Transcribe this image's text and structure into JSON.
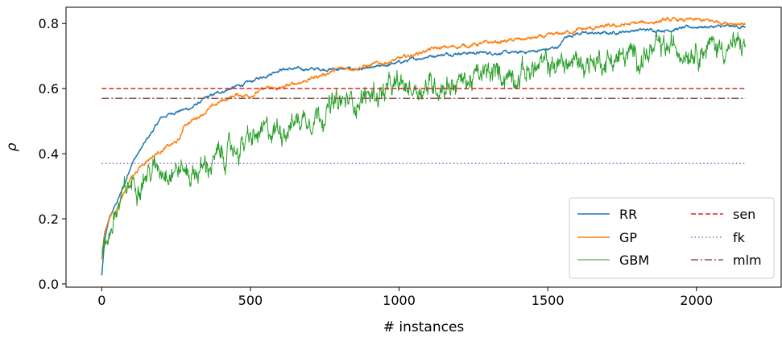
{
  "chart_data": {
    "type": "line",
    "xlabel": "# instances",
    "ylabel": "ρ",
    "xlim": [
      -120,
      2285
    ],
    "ylim": [
      -0.01,
      0.85
    ],
    "xticks": [
      0,
      500,
      1000,
      1500,
      2000
    ],
    "yticks": [
      0.0,
      0.2,
      0.4,
      0.6,
      0.8
    ],
    "xtick_labels": [
      "0",
      "500",
      "1000",
      "1500",
      "2000"
    ],
    "ytick_labels": [
      "0.0",
      "0.2",
      "0.4",
      "0.6",
      "0.8"
    ],
    "grid": false,
    "legend_position": "lower-right",
    "series": [
      {
        "name": "RR",
        "color": "#1f77b4",
        "style": "solid",
        "noise": 0.004,
        "points": [
          [
            0,
            0.025
          ],
          [
            10,
            0.13
          ],
          [
            25,
            0.2
          ],
          [
            50,
            0.25
          ],
          [
            75,
            0.3
          ],
          [
            100,
            0.37
          ],
          [
            150,
            0.44
          ],
          [
            200,
            0.51
          ],
          [
            250,
            0.53
          ],
          [
            300,
            0.54
          ],
          [
            350,
            0.57
          ],
          [
            400,
            0.59
          ],
          [
            500,
            0.62
          ],
          [
            600,
            0.66
          ],
          [
            700,
            0.66
          ],
          [
            800,
            0.66
          ],
          [
            900,
            0.66
          ],
          [
            1000,
            0.68
          ],
          [
            1100,
            0.7
          ],
          [
            1200,
            0.71
          ],
          [
            1300,
            0.71
          ],
          [
            1400,
            0.71
          ],
          [
            1500,
            0.72
          ],
          [
            1540,
            0.73
          ],
          [
            1560,
            0.76
          ],
          [
            1600,
            0.77
          ],
          [
            1700,
            0.77
          ],
          [
            1800,
            0.78
          ],
          [
            1900,
            0.78
          ],
          [
            2000,
            0.79
          ],
          [
            2165,
            0.79
          ]
        ]
      },
      {
        "name": "GP",
        "color": "#ff7f0e",
        "style": "solid",
        "noise": 0.005,
        "points": [
          [
            0,
            0.075
          ],
          [
            10,
            0.15
          ],
          [
            25,
            0.2
          ],
          [
            50,
            0.23
          ],
          [
            75,
            0.28
          ],
          [
            100,
            0.33
          ],
          [
            150,
            0.38
          ],
          [
            200,
            0.41
          ],
          [
            260,
            0.44
          ],
          [
            280,
            0.49
          ],
          [
            300,
            0.5
          ],
          [
            350,
            0.53
          ],
          [
            400,
            0.56
          ],
          [
            450,
            0.58
          ],
          [
            500,
            0.58
          ],
          [
            550,
            0.6
          ],
          [
            600,
            0.6
          ],
          [
            700,
            0.63
          ],
          [
            800,
            0.66
          ],
          [
            900,
            0.67
          ],
          [
            1000,
            0.69
          ],
          [
            1100,
            0.72
          ],
          [
            1200,
            0.73
          ],
          [
            1300,
            0.74
          ],
          [
            1400,
            0.75
          ],
          [
            1500,
            0.76
          ],
          [
            1600,
            0.78
          ],
          [
            1700,
            0.79
          ],
          [
            1800,
            0.8
          ],
          [
            1900,
            0.81
          ],
          [
            2000,
            0.81
          ],
          [
            2165,
            0.8
          ]
        ]
      },
      {
        "name": "GBM",
        "color": "#2ca02c",
        "style": "solid",
        "noise": 0.028,
        "points": [
          [
            0,
            0.07
          ],
          [
            25,
            0.16
          ],
          [
            50,
            0.22
          ],
          [
            75,
            0.27
          ],
          [
            100,
            0.31
          ],
          [
            150,
            0.34
          ],
          [
            200,
            0.36
          ],
          [
            250,
            0.36
          ],
          [
            300,
            0.34
          ],
          [
            350,
            0.36
          ],
          [
            400,
            0.39
          ],
          [
            500,
            0.44
          ],
          [
            600,
            0.48
          ],
          [
            700,
            0.52
          ],
          [
            800,
            0.55
          ],
          [
            900,
            0.58
          ],
          [
            1000,
            0.6
          ],
          [
            1100,
            0.61
          ],
          [
            1200,
            0.62
          ],
          [
            1300,
            0.64
          ],
          [
            1400,
            0.65
          ],
          [
            1500,
            0.67
          ],
          [
            1600,
            0.68
          ],
          [
            1700,
            0.69
          ],
          [
            1800,
            0.7
          ],
          [
            1900,
            0.72
          ],
          [
            2000,
            0.73
          ],
          [
            2165,
            0.73
          ]
        ]
      },
      {
        "name": "sen",
        "color": "#d62728",
        "style": "dashed",
        "points": [
          [
            0,
            0.6
          ],
          [
            2165,
            0.6
          ]
        ]
      },
      {
        "name": "fk",
        "color": "#9467bd",
        "style": "dotted",
        "points": [
          [
            0,
            0.37
          ],
          [
            2165,
            0.37
          ]
        ]
      },
      {
        "name": "mlm",
        "color": "#8c564b",
        "style": "dashdot",
        "points": [
          [
            0,
            0.57
          ],
          [
            2165,
            0.57
          ]
        ]
      }
    ]
  }
}
